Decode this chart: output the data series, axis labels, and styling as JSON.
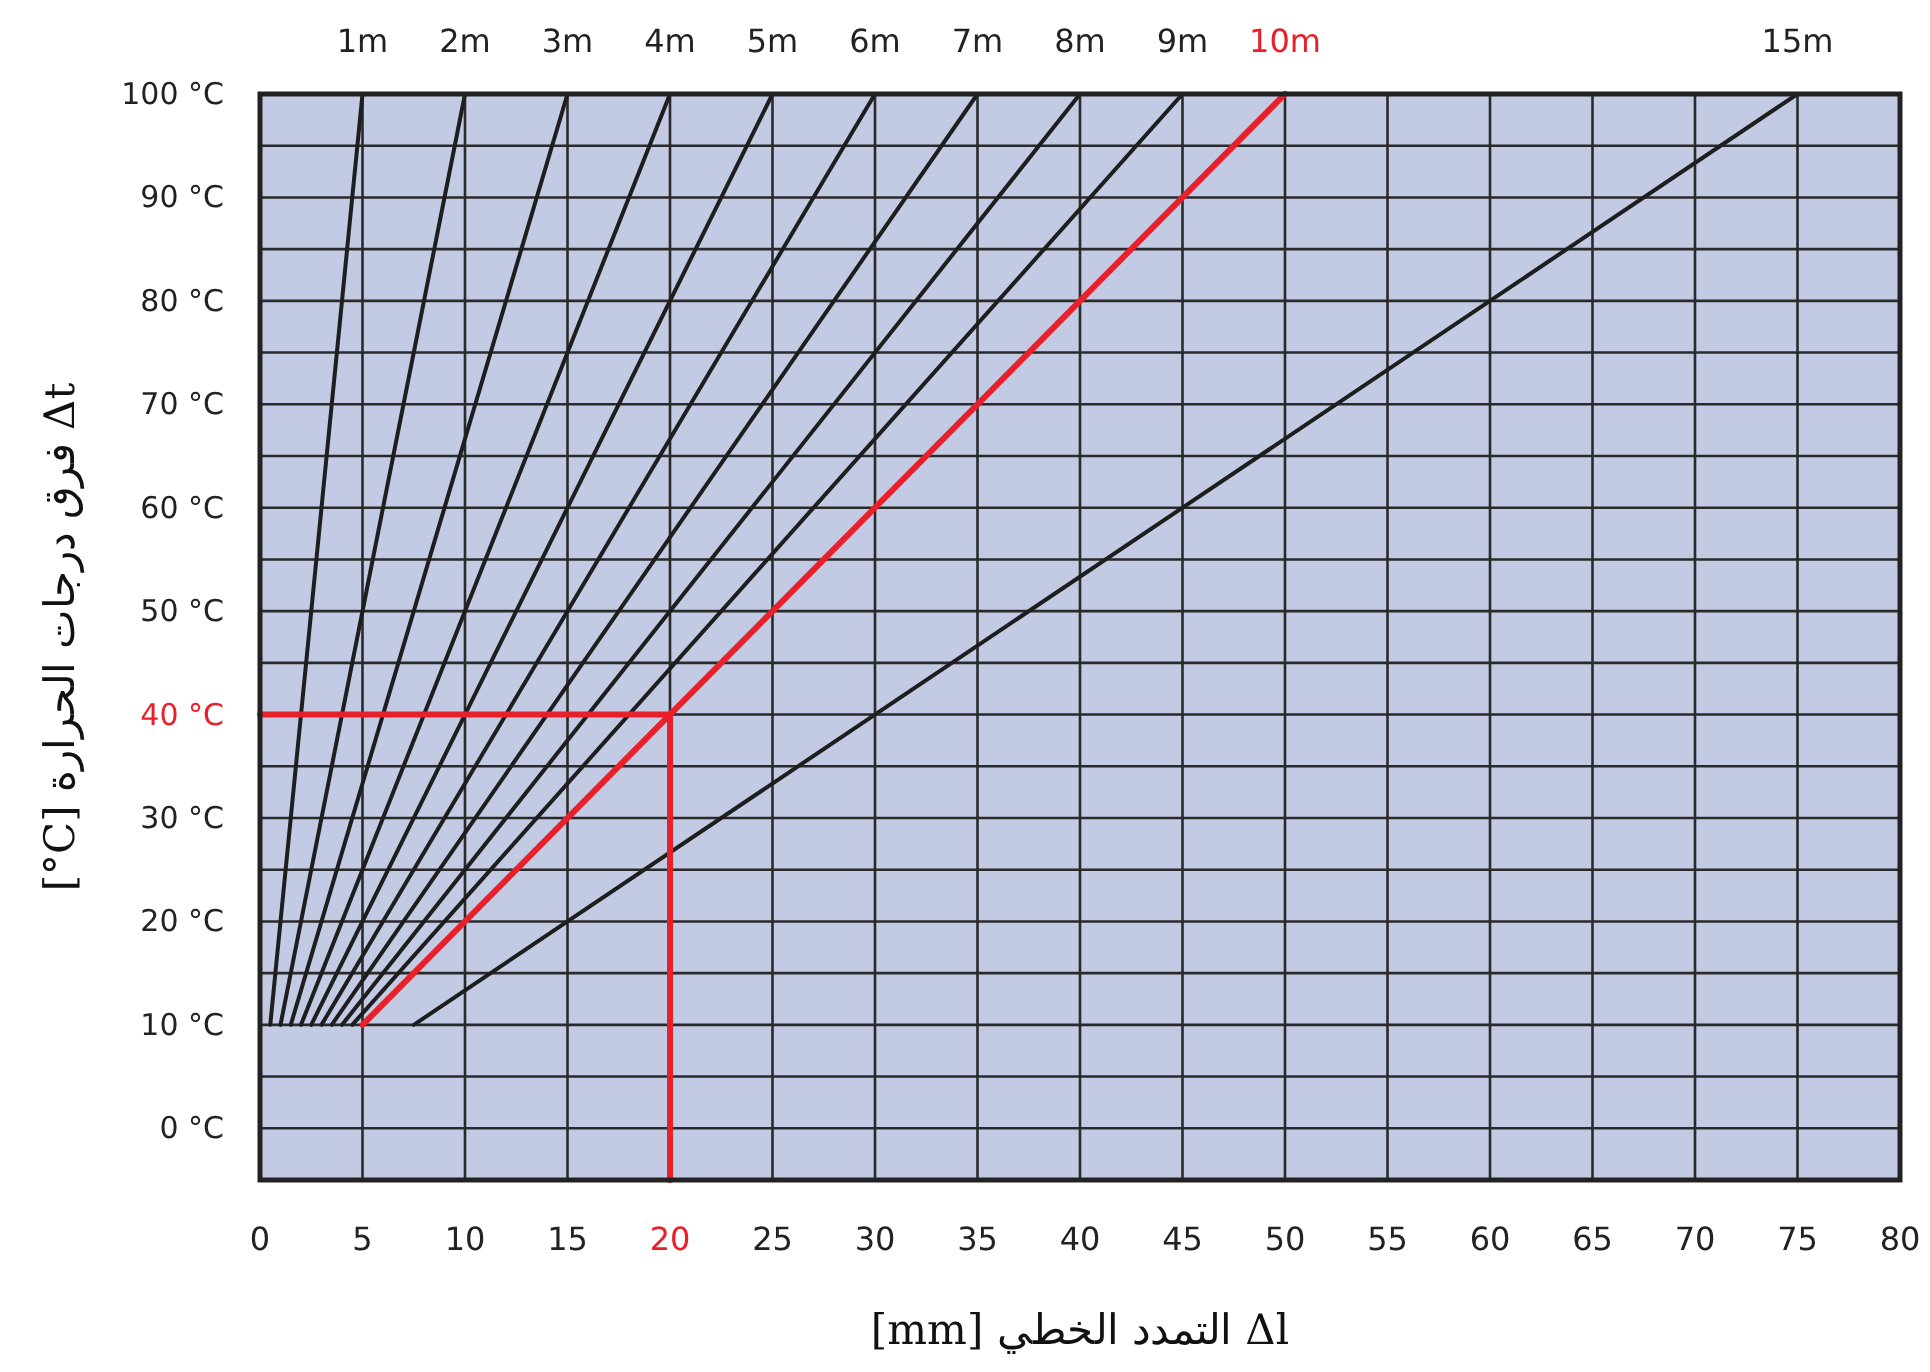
{
  "chart_data": {
    "type": "line",
    "xlabel": "[mm] التمدد الخطي  Δl",
    "ylabel": "[°C] فرق درجات الحرارة  Δt",
    "xlim": [
      0,
      80
    ],
    "xticks": [
      0,
      5,
      10,
      15,
      20,
      25,
      30,
      35,
      40,
      45,
      50,
      55,
      60,
      65,
      70,
      75,
      80
    ],
    "ylim": [
      -5,
      100
    ],
    "yticks": [
      {
        "value": -5,
        "label": null
      },
      {
        "value": 0,
        "label": "0 °C"
      },
      {
        "value": 5,
        "label": null
      },
      {
        "value": 10,
        "label": "10 °C"
      },
      {
        "value": 15,
        "label": null
      },
      {
        "value": 20,
        "label": "20 °C"
      },
      {
        "value": 25,
        "label": null
      },
      {
        "value": 30,
        "label": "30 °C"
      },
      {
        "value": 35,
        "label": null
      },
      {
        "value": 40,
        "label": "40 °C"
      },
      {
        "value": 45,
        "label": null
      },
      {
        "value": 50,
        "label": "50 °C"
      },
      {
        "value": 55,
        "label": null
      },
      {
        "value": 60,
        "label": "60 °C"
      },
      {
        "value": 65,
        "label": null
      },
      {
        "value": 70,
        "label": "70 °C"
      },
      {
        "value": 75,
        "label": null
      },
      {
        "value": 80,
        "label": "80 °C"
      },
      {
        "value": 85,
        "label": null
      },
      {
        "value": 90,
        "label": "90 °C"
      },
      {
        "value": 95,
        "label": null
      },
      {
        "value": 100,
        "label": "100 °C"
      }
    ],
    "grid": true,
    "series": [
      {
        "name": "1m",
        "color": "#1e1e1e",
        "x": [
          0.5,
          5
        ],
        "values": [
          10,
          100
        ]
      },
      {
        "name": "2m",
        "color": "#1e1e1e",
        "x": [
          1,
          10
        ],
        "values": [
          10,
          100
        ]
      },
      {
        "name": "3m",
        "color": "#1e1e1e",
        "x": [
          1.5,
          15
        ],
        "values": [
          10,
          100
        ]
      },
      {
        "name": "4m",
        "color": "#1e1e1e",
        "x": [
          2,
          20
        ],
        "values": [
          10,
          100
        ]
      },
      {
        "name": "5m",
        "color": "#1e1e1e",
        "x": [
          2.5,
          25
        ],
        "values": [
          10,
          100
        ]
      },
      {
        "name": "6m",
        "color": "#1e1e1e",
        "x": [
          3,
          30
        ],
        "values": [
          10,
          100
        ]
      },
      {
        "name": "7m",
        "color": "#1e1e1e",
        "x": [
          3.5,
          35
        ],
        "values": [
          10,
          100
        ]
      },
      {
        "name": "8m",
        "color": "#1e1e1e",
        "x": [
          4,
          40
        ],
        "values": [
          10,
          100
        ]
      },
      {
        "name": "9m",
        "color": "#1e1e1e",
        "x": [
          4.5,
          45
        ],
        "values": [
          10,
          100
        ]
      },
      {
        "name": "10m",
        "color": "#e8202a",
        "x": [
          5,
          50
        ],
        "values": [
          10,
          100
        ]
      },
      {
        "name": "15m",
        "color": "#1e1e1e",
        "x": [
          7.5,
          75
        ],
        "values": [
          10,
          100
        ]
      },
      {
        "color": "#e8202a",
        "x": [
          0,
          20,
          20
        ],
        "values": [
          40,
          40,
          -5
        ]
      }
    ]
  }
}
